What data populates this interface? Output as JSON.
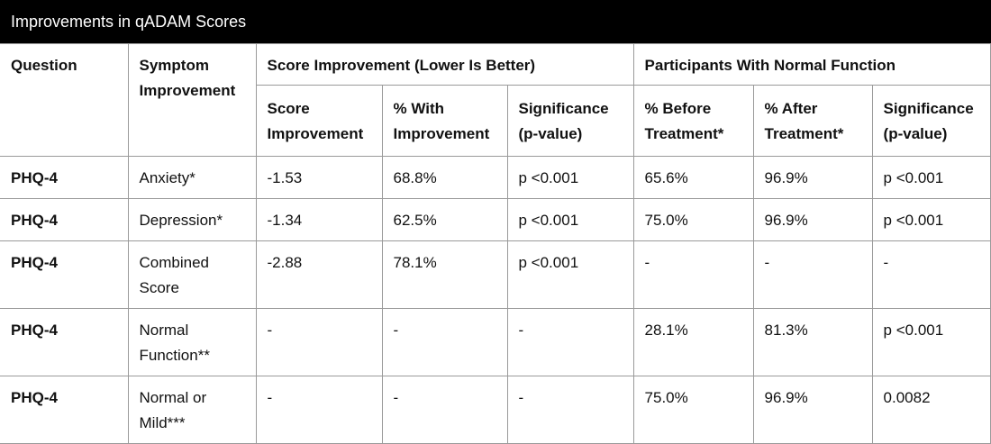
{
  "title": "Improvements in qADAM Scores",
  "headers": {
    "question": "Question",
    "symptom": "Symptom Improvement",
    "group_score": "Score Improvement (Lower Is Better)",
    "group_participants": "Participants With Normal Function",
    "sub": [
      "Score Improvement",
      "% With Improvement",
      "Significance (p-value)",
      "% Before Treatment*",
      "% After Treatment*",
      "Significance (p-value)"
    ]
  },
  "chart_data": {
    "type": "table",
    "title": "Improvements in qADAM Scores",
    "columns": [
      "Question",
      "Symptom Improvement",
      "Score Improvement",
      "% With Improvement",
      "Significance (p-value)",
      "% Before Treatment*",
      "% After Treatment*",
      "Significance (p-value)"
    ],
    "rows": [
      [
        "PHQ-4",
        "Anxiety*",
        "-1.53",
        "68.8%",
        "p <0.001",
        "65.6%",
        "96.9%",
        "p <0.001"
      ],
      [
        "PHQ-4",
        "Depression*",
        "-1.34",
        "62.5%",
        "p <0.001",
        "75.0%",
        "96.9%",
        "p <0.001"
      ],
      [
        "PHQ-4",
        "Combined Score",
        "-2.88",
        "78.1%",
        "p <0.001",
        "-",
        "-",
        "-"
      ],
      [
        "PHQ-4",
        "Normal Function**",
        "-",
        "-",
        "-",
        "28.1%",
        "81.3%",
        "p <0.001"
      ],
      [
        "PHQ-4",
        "Normal or Mild***",
        "-",
        "-",
        "-",
        "75.0%",
        "96.9%",
        "0.0082"
      ]
    ]
  }
}
